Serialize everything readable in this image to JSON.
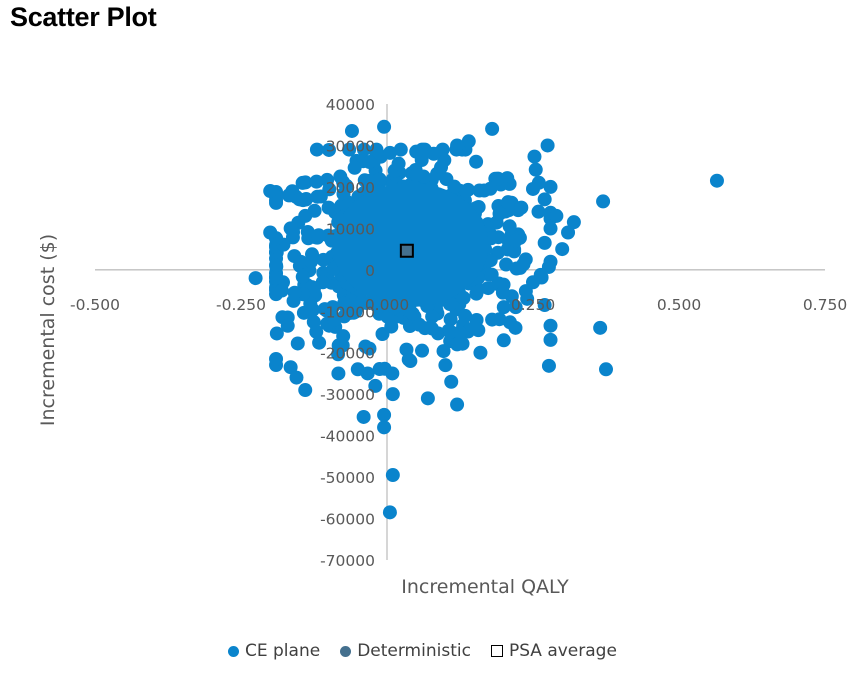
{
  "page": {
    "title": "Scatter Plot"
  },
  "colors": {
    "ce_plane": "#0A84CC",
    "deterministic": "#44708E",
    "psa_average_fill": "#44708E",
    "psa_average_border": "#000000",
    "axis": "#BFBFBF",
    "tick_text": "#595959"
  },
  "legend": [
    {
      "label": "CE plane",
      "marker": "circle",
      "color": "#0A84CC"
    },
    {
      "label": "Deterministic",
      "marker": "circle",
      "color": "#44708E"
    },
    {
      "label": "PSA average",
      "marker": "square",
      "color": "#000000"
    }
  ],
  "chart_data": {
    "type": "scatter",
    "title": "Scatter Plot",
    "xlabel": "Incremental QALY",
    "ylabel": "Incremental cost ($)",
    "xlim": [
      -0.5,
      0.75
    ],
    "ylim": [
      -70000,
      40000
    ],
    "x_ticks": [
      "-0.500",
      "-0.250",
      "0.000",
      "0.250",
      "0.500",
      "0.750"
    ],
    "y_ticks": [
      "40000",
      "30000",
      "20000",
      "10000",
      "0",
      "-10000",
      "-20000",
      "-30000",
      "-40000",
      "-50000",
      "-60000",
      "-70000"
    ],
    "grid": false,
    "legend_position": "bottom",
    "series": [
      {
        "name": "CE plane",
        "color": "#0A84CC",
        "dense_cluster": {
          "x_center": 0.03,
          "y_center": 5000,
          "x_spread": 0.11,
          "y_spread": 11000,
          "count": 700
        },
        "points": [
          [
            0.565,
            21500
          ],
          [
            0.37,
            16500
          ],
          [
            0.375,
            -24000
          ],
          [
            0.365,
            -14000
          ],
          [
            0.275,
            30000
          ],
          [
            0.18,
            34000
          ],
          [
            0.32,
            11500
          ],
          [
            0.31,
            9000
          ],
          [
            0.3,
            5000
          ],
          [
            0.28,
            20000
          ],
          [
            0.26,
            21000
          ],
          [
            0.25,
            19500
          ],
          [
            0.27,
            17000
          ],
          [
            0.29,
            13000
          ],
          [
            0.27,
            6500
          ],
          [
            0.25,
            -3000
          ],
          [
            0.24,
            -7000
          ],
          [
            0.27,
            -8500
          ],
          [
            0.22,
            -14000
          ],
          [
            0.2,
            -17000
          ],
          [
            0.16,
            -20000
          ],
          [
            0.12,
            -18000
          ],
          [
            0.11,
            -27000
          ],
          [
            0.12,
            -32500
          ],
          [
            0.07,
            -31000
          ],
          [
            0.01,
            -30000
          ],
          [
            -0.02,
            -28000
          ],
          [
            -0.04,
            -35500
          ],
          [
            -0.005,
            -38000
          ],
          [
            0.01,
            -49500
          ],
          [
            0.005,
            -58500
          ],
          [
            -0.005,
            -35000
          ],
          [
            -0.2,
            19000
          ],
          [
            -0.165,
            18000
          ],
          [
            -0.15,
            17000
          ],
          [
            -0.14,
            13000
          ],
          [
            -0.2,
            9000
          ],
          [
            -0.165,
            10000
          ],
          [
            -0.225,
            -2000
          ],
          [
            -0.19,
            -2000
          ],
          [
            -0.18,
            -5000
          ],
          [
            -0.16,
            -7500
          ],
          [
            -0.17,
            -11500
          ],
          [
            -0.17,
            -13500
          ],
          [
            -0.19,
            -21500
          ],
          [
            -0.165,
            -23500
          ],
          [
            -0.155,
            -26000
          ],
          [
            -0.14,
            -29000
          ],
          [
            -0.12,
            29000
          ],
          [
            -0.06,
            33500
          ],
          [
            -0.005,
            34500
          ],
          [
            -0.03,
            26000
          ],
          [
            -0.08,
            22500
          ],
          [
            -0.1,
            15000
          ],
          [
            -0.13,
            2000
          ],
          [
            -0.11,
            -3000
          ],
          [
            -0.09,
            -12000
          ],
          [
            -0.075,
            -16000
          ],
          [
            0.14,
            31000
          ],
          [
            0.12,
            30000
          ],
          [
            0.08,
            28000
          ],
          [
            0.05,
            28500
          ],
          [
            0.19,
            22000
          ],
          [
            0.23,
            15000
          ],
          [
            0.21,
            10500
          ],
          [
            0.22,
            7000
          ],
          [
            0.15,
            -14000
          ],
          [
            0.18,
            -12000
          ],
          [
            0.2,
            -9000
          ],
          [
            0.1,
            -23000
          ],
          [
            -0.05,
            -24000
          ],
          [
            -0.03,
            -19000
          ],
          [
            0.04,
            -22000
          ],
          [
            0.06,
            -19500
          ]
        ]
      },
      {
        "name": "Deterministic",
        "color": "#44708E",
        "points": []
      },
      {
        "name": "PSA average",
        "color": "#000000",
        "marker": "square",
        "points": [
          [
            0.034,
            4600
          ]
        ]
      }
    ]
  }
}
